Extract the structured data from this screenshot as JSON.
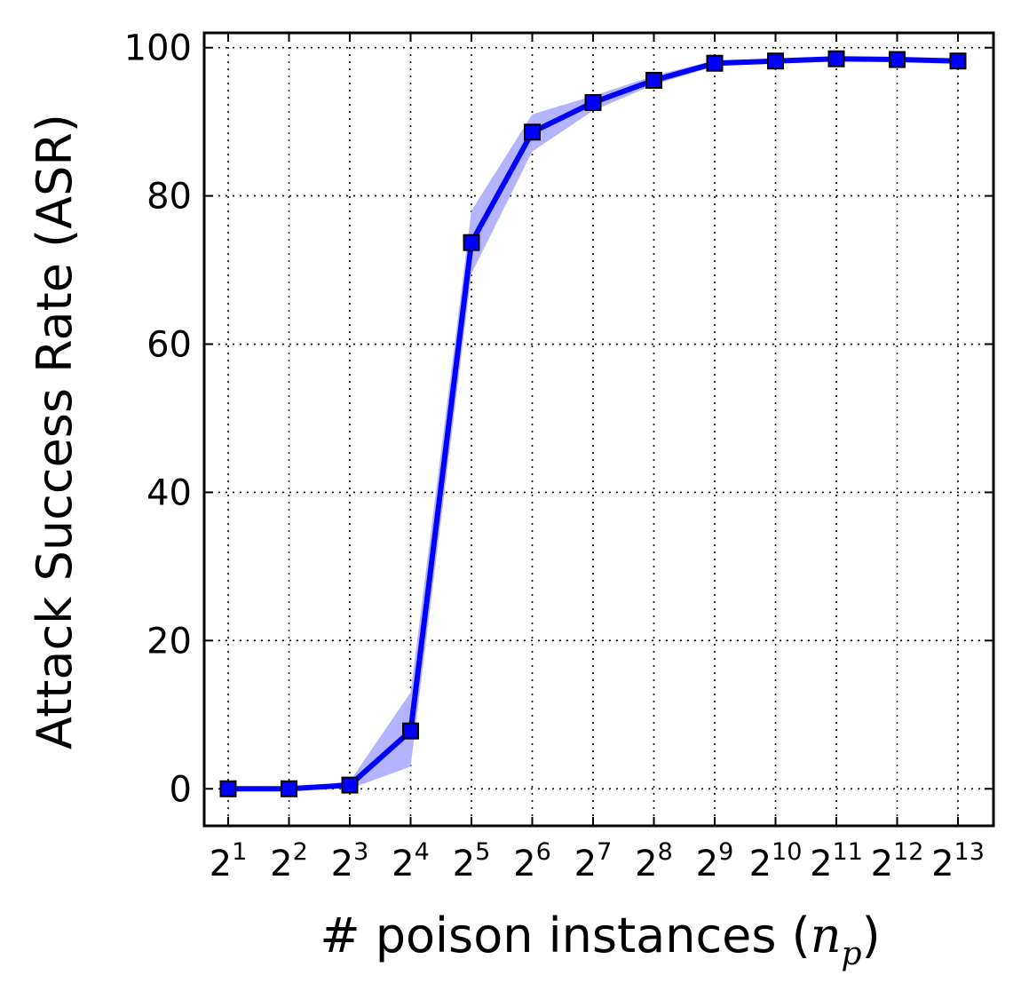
{
  "chart_data": {
    "type": "line",
    "xlabel_prefix": "# poison instances (",
    "xlabel_var": "n",
    "xlabel_sub": "p",
    "xlabel_suffix": ")",
    "ylabel": "Attack Success Rate (ASR)",
    "x_base": "2",
    "x_exponents": [
      "1",
      "2",
      "3",
      "4",
      "5",
      "6",
      "7",
      "8",
      "9",
      "10",
      "11",
      "12",
      "13"
    ],
    "ylim": [
      -5,
      102
    ],
    "yticks": [
      0,
      20,
      40,
      60,
      80,
      100
    ],
    "grid": true,
    "series": [
      {
        "color": "#0000ff",
        "band_color": "#b3b3ff",
        "marker": "square",
        "values": [
          0,
          0,
          0.5,
          7.8,
          73.7,
          88.6,
          92.6,
          95.6,
          97.9,
          98.2,
          98.5,
          98.4,
          98.2
        ],
        "lower": [
          0,
          0,
          0,
          3.0,
          69.5,
          86.0,
          91.5,
          95.0,
          97.5,
          97.9,
          98.2,
          98.1,
          97.9
        ],
        "upper": [
          0,
          0,
          1.0,
          13.0,
          78.0,
          91.0,
          93.5,
          96.2,
          98.3,
          98.5,
          98.8,
          98.7,
          98.5
        ]
      }
    ]
  }
}
